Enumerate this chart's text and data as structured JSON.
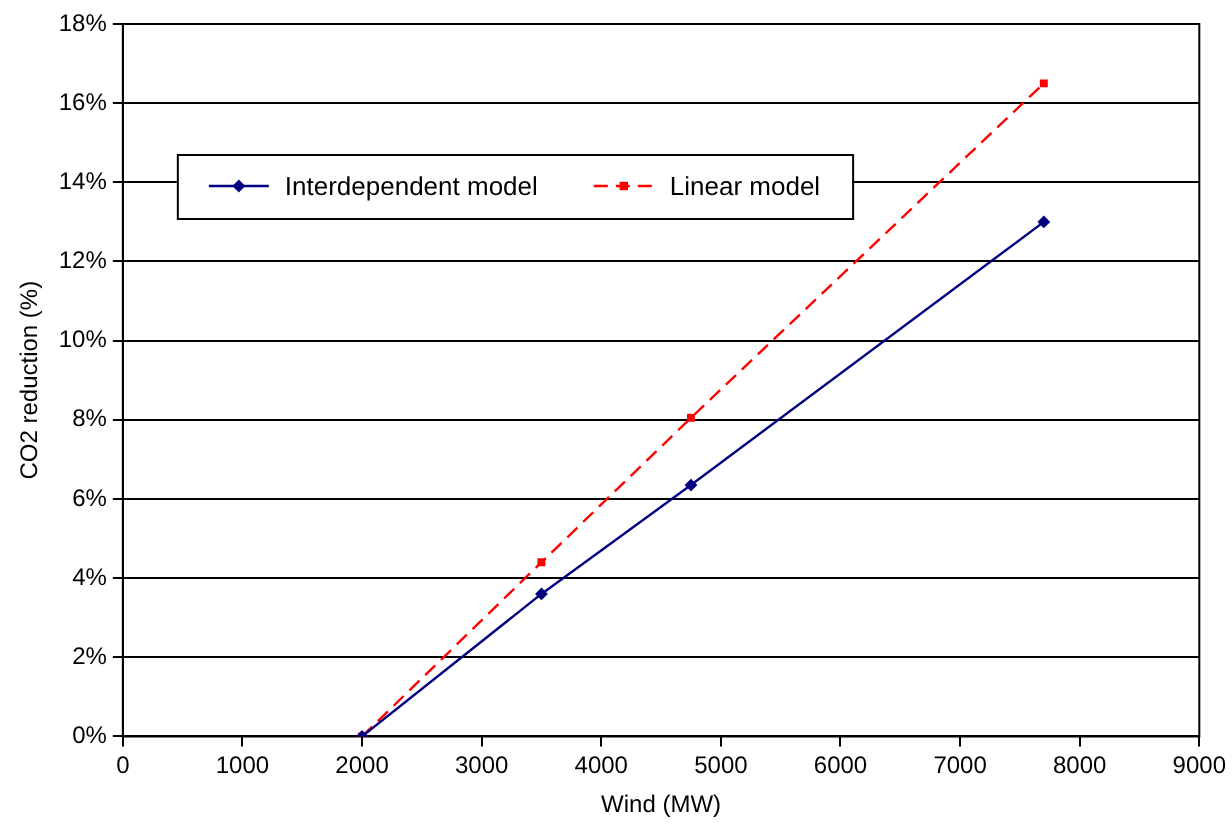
{
  "chart_data": {
    "type": "line",
    "xlabel": "Wind (MW)",
    "ylabel": "CO2 reduction (%)",
    "series": [
      {
        "name": "Interdependent model",
        "color": "#000080",
        "x": [
          2000,
          3500,
          4750,
          7700
        ],
        "values": [
          0,
          3.6,
          6.35,
          13.0
        ],
        "marker": "diamond",
        "line_style": "solid"
      },
      {
        "name": "Linear model",
        "color": "#ff0000",
        "x": [
          2000,
          3500,
          4750,
          7700
        ],
        "values": [
          0,
          4.4,
          8.05,
          16.5
        ],
        "marker": "square",
        "line_style": "dashed"
      }
    ],
    "xlim": [
      0,
      9000
    ],
    "xticks": [
      0,
      1000,
      2000,
      3000,
      4000,
      5000,
      6000,
      7000,
      8000,
      9000
    ],
    "ylim": [
      0,
      18
    ],
    "yticks": [
      {
        "value": 0,
        "label": "0%"
      },
      {
        "value": 2,
        "label": "2%"
      },
      {
        "value": 4,
        "label": "4%"
      },
      {
        "value": 6,
        "label": "6%"
      },
      {
        "value": 8,
        "label": "8%"
      },
      {
        "value": 10,
        "label": "10%"
      },
      {
        "value": 12,
        "label": "12%"
      },
      {
        "value": 14,
        "label": "14%"
      },
      {
        "value": 16,
        "label": "16%"
      },
      {
        "value": 18,
        "label": "18%"
      }
    ],
    "grid": "y",
    "legend": "top left"
  }
}
